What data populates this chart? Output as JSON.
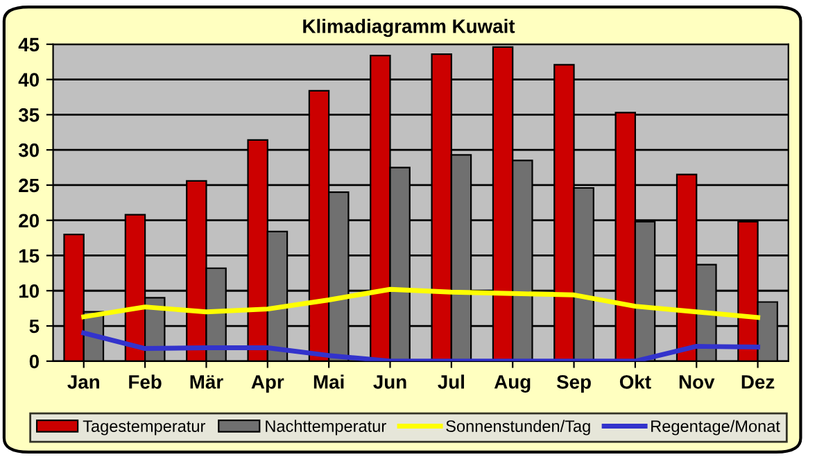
{
  "chart_data": {
    "type": "bar",
    "title": "Klimadiagramm Kuwait",
    "categories": [
      "Jan",
      "Feb",
      "Mär",
      "Apr",
      "Mai",
      "Jun",
      "Jul",
      "Aug",
      "Sep",
      "Okt",
      "Nov",
      "Dez"
    ],
    "series": [
      {
        "name": "Tagestemperatur",
        "color": "#cc0000",
        "values": [
          18,
          20.8,
          25.6,
          31.4,
          38.4,
          43.4,
          43.6,
          44.6,
          42.1,
          35.3,
          26.5,
          19.8
        ]
      },
      {
        "name": "Nachttemperatur",
        "color": "#707070",
        "values": [
          7,
          9,
          13.2,
          18.4,
          24,
          27.5,
          29.3,
          28.5,
          24.6,
          19.8,
          13.7,
          8.4
        ]
      },
      {
        "name": "Sonnenstunden/Tag",
        "type": "line",
        "color": "#ffff00",
        "values": [
          6.3,
          7.7,
          7,
          7.4,
          8.7,
          10.2,
          9.8,
          9.6,
          9.4,
          7.8,
          7,
          6.2
        ]
      },
      {
        "name": "Regentage/Monat",
        "type": "line",
        "color": "#3333cc",
        "values": [
          4,
          1.8,
          1.9,
          1.9,
          0.8,
          0,
          0,
          0,
          0,
          0,
          2.1,
          2
        ]
      }
    ],
    "ylim": [
      0,
      45
    ],
    "yticks": [
      0,
      5,
      10,
      15,
      20,
      25,
      30,
      35,
      40,
      45
    ],
    "grid": "y",
    "legend": "bottom",
    "marker": "none",
    "line_style": "solid"
  }
}
